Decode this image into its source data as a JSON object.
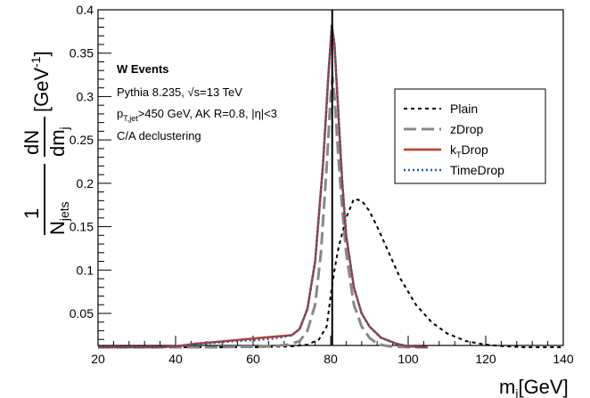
{
  "chart_data": {
    "type": "line",
    "xlabel": "m_j[GeV]",
    "ylabel": "1/N_jets dN/dm_j [GeV^-1]",
    "xlim": [
      20,
      140
    ],
    "ylim": [
      0.01,
      0.4
    ],
    "x_ticks": [
      "20",
      "40",
      "60",
      "80",
      "100",
      "120",
      "140"
    ],
    "y_ticks": [
      "0.05",
      "0.1",
      "0.15",
      "0.2",
      "0.25",
      "0.3",
      "0.35",
      "0.4"
    ],
    "grid": false,
    "legend_position": "top-right",
    "annotations": {
      "title": "W Events",
      "generator": "Pythia 8.235, √s=13 TeV",
      "cut_prefix": "p",
      "cut_sub": "T,jet",
      "cut_text": ">450 GeV, AK R=0.8, |η|<3",
      "declustering": "C/A declustering"
    },
    "reference_line": {
      "x": 80.4
    },
    "series": [
      {
        "name": "Plain",
        "label_main": "Plain",
        "label_sub": "",
        "label_tail": "",
        "color": "#000000",
        "dash": "4,4",
        "width": 2,
        "points": [
          [
            20,
            0.011
          ],
          [
            60,
            0.011
          ],
          [
            70,
            0.012
          ],
          [
            74,
            0.014
          ],
          [
            77,
            0.02
          ],
          [
            79,
            0.035
          ],
          [
            80,
            0.07
          ],
          [
            81,
            0.1
          ],
          [
            82,
            0.125
          ],
          [
            84,
            0.16
          ],
          [
            86,
            0.182
          ],
          [
            88,
            0.18
          ],
          [
            90,
            0.168
          ],
          [
            92,
            0.15
          ],
          [
            95,
            0.12
          ],
          [
            98,
            0.09
          ],
          [
            102,
            0.06
          ],
          [
            106,
            0.04
          ],
          [
            110,
            0.027
          ],
          [
            115,
            0.018
          ],
          [
            120,
            0.014
          ],
          [
            125,
            0.012
          ],
          [
            130,
            0.011
          ],
          [
            140,
            0.011
          ]
        ]
      },
      {
        "name": "zDrop",
        "label_main": "zDrop",
        "label_sub": "",
        "label_tail": "",
        "color": "#888888",
        "dash": "14,6",
        "width": 3,
        "points": [
          [
            20,
            0.011
          ],
          [
            50,
            0.011
          ],
          [
            65,
            0.012
          ],
          [
            69,
            0.014
          ],
          [
            72,
            0.018
          ],
          [
            74,
            0.03
          ],
          [
            76,
            0.06
          ],
          [
            77.5,
            0.12
          ],
          [
            79,
            0.22
          ],
          [
            80,
            0.3
          ],
          [
            80.5,
            0.322
          ],
          [
            81,
            0.3
          ],
          [
            82,
            0.23
          ],
          [
            83,
            0.17
          ],
          [
            84,
            0.12
          ],
          [
            86,
            0.06
          ],
          [
            88,
            0.035
          ],
          [
            90,
            0.022
          ],
          [
            92,
            0.015
          ],
          [
            95,
            0.012
          ],
          [
            100,
            0.011
          ],
          [
            105,
            0.011
          ]
        ]
      },
      {
        "name": "kTDrop",
        "label_main": "k",
        "label_sub": "T",
        "label_tail": "Drop",
        "color": "#c0392b",
        "dash": "",
        "width": 2.5,
        "points": [
          [
            20,
            0.011
          ],
          [
            35,
            0.011
          ],
          [
            40,
            0.012
          ],
          [
            45,
            0.015
          ],
          [
            50,
            0.017
          ],
          [
            55,
            0.019
          ],
          [
            60,
            0.021
          ],
          [
            65,
            0.023
          ],
          [
            68,
            0.024
          ],
          [
            70,
            0.025
          ],
          [
            72,
            0.032
          ],
          [
            74,
            0.055
          ],
          [
            76,
            0.11
          ],
          [
            78,
            0.22
          ],
          [
            79.5,
            0.33
          ],
          [
            80.3,
            0.382
          ],
          [
            81,
            0.36
          ],
          [
            82,
            0.28
          ],
          [
            83,
            0.2
          ],
          [
            84,
            0.14
          ],
          [
            86,
            0.08
          ],
          [
            88,
            0.05
          ],
          [
            90,
            0.035
          ],
          [
            93,
            0.022
          ],
          [
            97,
            0.015
          ],
          [
            100,
            0.012
          ],
          [
            105,
            0.011
          ]
        ]
      },
      {
        "name": "TimeDrop",
        "label_main": "TimeDrop",
        "label_sub": "",
        "label_tail": "",
        "color": "#1f5fa8",
        "dash": "2,3",
        "width": 2.5,
        "points": [
          [
            20,
            0.011
          ],
          [
            35,
            0.011
          ],
          [
            40,
            0.012
          ],
          [
            45,
            0.014
          ],
          [
            50,
            0.016
          ],
          [
            55,
            0.018
          ],
          [
            60,
            0.019
          ],
          [
            65,
            0.021
          ],
          [
            68,
            0.023
          ],
          [
            70,
            0.025
          ],
          [
            72,
            0.032
          ],
          [
            74,
            0.055
          ],
          [
            76,
            0.11
          ],
          [
            78,
            0.22
          ],
          [
            79.5,
            0.33
          ],
          [
            80.3,
            0.383
          ],
          [
            81,
            0.36
          ],
          [
            82,
            0.28
          ],
          [
            83,
            0.2
          ],
          [
            84,
            0.14
          ],
          [
            86,
            0.08
          ],
          [
            88,
            0.05
          ],
          [
            90,
            0.035
          ],
          [
            93,
            0.022
          ],
          [
            97,
            0.015
          ],
          [
            100,
            0.012
          ],
          [
            105,
            0.011
          ]
        ]
      }
    ]
  }
}
